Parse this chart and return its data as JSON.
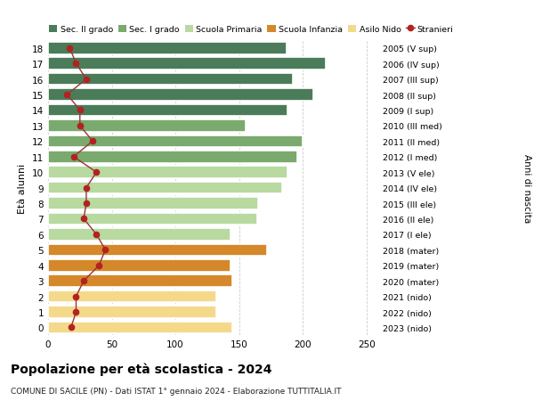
{
  "ages": [
    18,
    17,
    16,
    15,
    14,
    13,
    12,
    11,
    10,
    9,
    8,
    7,
    6,
    5,
    4,
    3,
    2,
    1,
    0
  ],
  "right_labels": [
    "2005 (V sup)",
    "2006 (IV sup)",
    "2007 (III sup)",
    "2008 (II sup)",
    "2009 (I sup)",
    "2010 (III med)",
    "2011 (II med)",
    "2012 (I med)",
    "2013 (V ele)",
    "2014 (IV ele)",
    "2015 (III ele)",
    "2016 (II ele)",
    "2017 (I ele)",
    "2018 (mater)",
    "2019 (mater)",
    "2020 (mater)",
    "2021 (nido)",
    "2022 (nido)",
    "2023 (nido)"
  ],
  "bar_values": [
    187,
    218,
    192,
    208,
    188,
    155,
    200,
    196,
    188,
    184,
    165,
    164,
    143,
    172,
    143,
    145,
    132,
    132,
    145
  ],
  "stranieri_values": [
    17,
    22,
    30,
    15,
    25,
    25,
    35,
    20,
    38,
    30,
    30,
    28,
    38,
    45,
    40,
    28,
    22,
    22,
    18
  ],
  "bar_colors": [
    "#4a7c59",
    "#4a7c59",
    "#4a7c59",
    "#4a7c59",
    "#4a7c59",
    "#7aaa6e",
    "#7aaa6e",
    "#7aaa6e",
    "#b8d9a0",
    "#b8d9a0",
    "#b8d9a0",
    "#b8d9a0",
    "#b8d9a0",
    "#d4882a",
    "#d4882a",
    "#d4882a",
    "#f5d98b",
    "#f5d98b",
    "#f5d98b"
  ],
  "legend_labels": [
    "Sec. II grado",
    "Sec. I grado",
    "Scuola Primaria",
    "Scuola Infanzia",
    "Asilo Nido",
    "Stranieri"
  ],
  "legend_colors": [
    "#4a7c59",
    "#7aaa6e",
    "#b8d9a0",
    "#d4882a",
    "#f5d98b",
    "#b22222"
  ],
  "title": "Popolazione per età scolastica - 2024",
  "subtitle": "COMUNE DI SACILE (PN) - Dati ISTAT 1° gennaio 2024 - Elaborazione TUTTITALIA.IT",
  "xlabel_right": "Anni di nascita",
  "ylabel": "Età alunni",
  "xlim": [
    0,
    260
  ],
  "xticks": [
    0,
    50,
    100,
    150,
    200,
    250
  ],
  "background_color": "#ffffff",
  "grid_color": "#cccccc",
  "stranieri_color": "#b22222",
  "stranieri_line_color": "#9b3333"
}
